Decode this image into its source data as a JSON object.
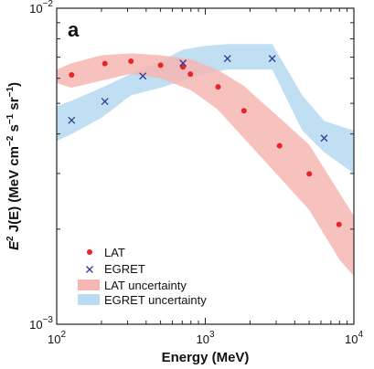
{
  "chart_data": {
    "type": "scatter",
    "panel_label": "a",
    "xlabel": "Energy (MeV)",
    "ylabel_parts": {
      "e": "E",
      "sq": "2",
      "j": " J(E) (MeV cm",
      "cm_exp": "−2",
      "s": " s",
      "s_exp": "−1",
      "sr": " sr",
      "sr_exp": "−1",
      "close": ")"
    },
    "x_scale": "log",
    "y_scale": "log",
    "xlim": [
      100,
      10000
    ],
    "ylim": [
      0.001,
      0.01
    ],
    "x_tick_labels": [
      {
        "base": "10",
        "exp": "2"
      },
      {
        "base": "10",
        "exp": "3"
      },
      {
        "base": "10",
        "exp": "4"
      }
    ],
    "y_tick_labels": [
      {
        "base": "10",
        "exp": "−2"
      },
      {
        "base": "10",
        "exp": "−3"
      }
    ],
    "grid": false,
    "legend_position": "bottom-left",
    "colors": {
      "lat": "#e8232a",
      "egret": "#3a3f9a",
      "lat_band": "#f6b6b1",
      "egret_band": "#b9dcf2"
    },
    "series": [
      {
        "name": "LAT",
        "marker": "dot",
        "x": [
          126,
          211,
          316,
          500,
          708,
          794,
          1220,
          1820,
          3160,
          5010,
          7940
        ],
        "y": [
          0.00615,
          0.00668,
          0.0068,
          0.0066,
          0.00652,
          0.00619,
          0.00564,
          0.00474,
          0.00367,
          0.00299,
          0.00207
        ]
      },
      {
        "name": "EGRET",
        "marker": "x",
        "x": [
          126,
          211,
          380,
          708,
          1410,
          2820,
          6310
        ],
        "y": [
          0.00442,
          0.00507,
          0.0061,
          0.0067,
          0.00693,
          0.00693,
          0.00388
        ]
      }
    ],
    "bands": [
      {
        "name": "LAT uncertainty",
        "x": [
          100,
          126,
          200,
          316,
          500,
          800,
          1200,
          1800,
          3000,
          5000,
          8000,
          10000
        ],
        "lower": [
          0.0058,
          0.0056,
          0.0059,
          0.0062,
          0.006,
          0.0055,
          0.0048,
          0.0039,
          0.003,
          0.0023,
          0.0016,
          0.00142
        ],
        "upper": [
          0.0064,
          0.0067,
          0.0071,
          0.0072,
          0.0071,
          0.0069,
          0.0064,
          0.0057,
          0.0046,
          0.0037,
          0.0026,
          0.0022
        ]
      },
      {
        "name": "EGRET uncertainty",
        "x": [
          100,
          126,
          200,
          316,
          500,
          708,
          1000,
          1410,
          2820,
          4500,
          6310,
          10000
        ],
        "lower": [
          0.0038,
          0.004,
          0.0045,
          0.0053,
          0.0056,
          0.0059,
          0.0062,
          0.0064,
          0.0064,
          0.0041,
          0.0035,
          0.003
        ],
        "upper": [
          0.0049,
          0.0051,
          0.0056,
          0.0062,
          0.0068,
          0.0074,
          0.0076,
          0.0077,
          0.0077,
          0.0053,
          0.0044,
          0.0041
        ]
      }
    ]
  }
}
